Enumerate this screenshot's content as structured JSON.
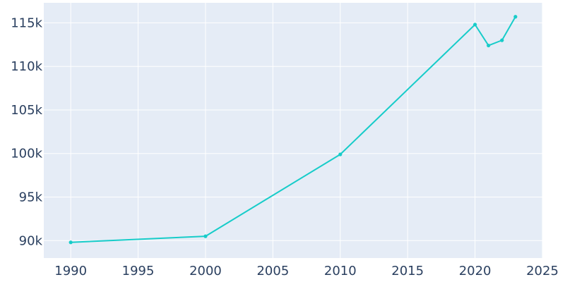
{
  "chart_data": {
    "type": "line",
    "title": "",
    "xlabel": "",
    "ylabel": "",
    "x": [
      1990,
      2000,
      2010,
      2020,
      2021,
      2022,
      2023
    ],
    "series": [
      {
        "values": [
          89800,
          90500,
          99900,
          114800,
          112400,
          113000,
          115700
        ]
      }
    ],
    "xlim": [
      1988,
      2025
    ],
    "ylim": [
      88000,
      117300
    ],
    "xticks": [
      1990,
      1995,
      2000,
      2005,
      2010,
      2015,
      2020,
      2025
    ],
    "xtick_labels": [
      "1990",
      "1995",
      "2000",
      "2005",
      "2010",
      "2015",
      "2020",
      "2025"
    ],
    "yticks": [
      90000,
      95000,
      100000,
      105000,
      110000,
      115000
    ],
    "ytick_labels": [
      "90k",
      "95k",
      "100k",
      "105k",
      "110k",
      "115k"
    ],
    "grid": true,
    "legend": "none",
    "colors": {
      "line": "#17ccc9",
      "plot_background": "#e5ecf6",
      "grid": "#ffffff",
      "text": "#2a3f5f"
    }
  }
}
